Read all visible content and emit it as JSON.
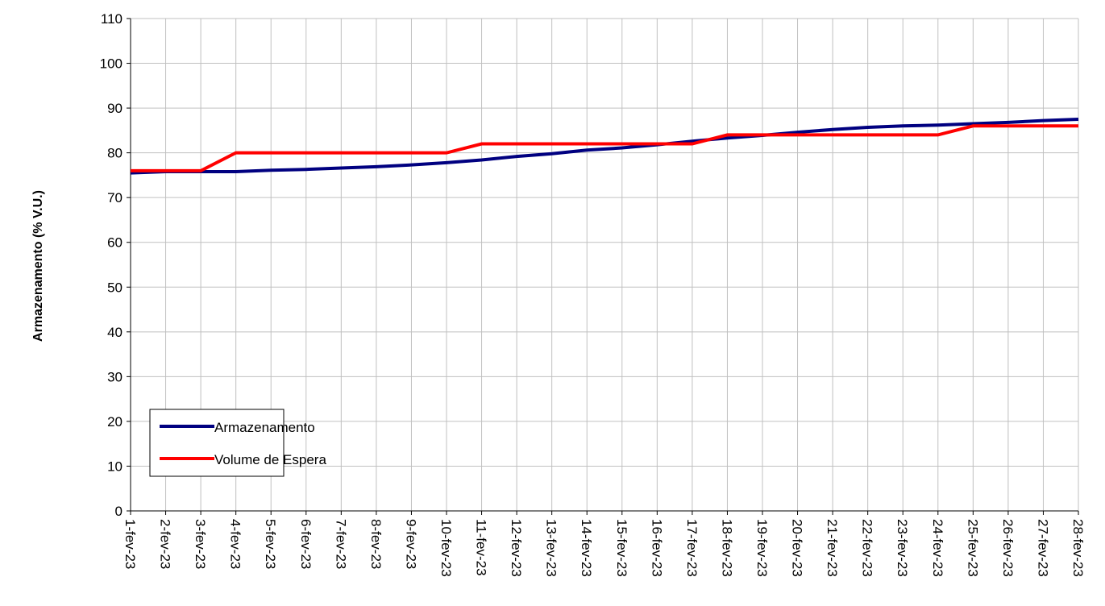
{
  "chart_data": {
    "type": "line",
    "y_label": "Armazenamento (% V.U.)",
    "categories": [
      "1-fev-23",
      "2-fev-23",
      "3-fev-23",
      "4-fev-23",
      "5-fev-23",
      "6-fev-23",
      "7-fev-23",
      "8-fev-23",
      "9-fev-23",
      "10-fev-23",
      "11-fev-23",
      "12-fev-23",
      "13-fev-23",
      "14-fev-23",
      "15-fev-23",
      "16-fev-23",
      "17-fev-23",
      "18-fev-23",
      "19-fev-23",
      "20-fev-23",
      "21-fev-23",
      "22-fev-23",
      "23-fev-23",
      "24-fev-23",
      "25-fev-23",
      "26-fev-23",
      "27-fev-23",
      "28-fev-23"
    ],
    "series": [
      {
        "name": "Armazenamento",
        "color": "#000080",
        "values": [
          75.5,
          75.8,
          75.8,
          75.8,
          76.1,
          76.3,
          76.6,
          76.9,
          77.3,
          77.8,
          78.4,
          79.2,
          79.8,
          80.6,
          81.1,
          81.8,
          82.6,
          83.3,
          83.9,
          84.6,
          85.2,
          85.7,
          86.0,
          86.2,
          86.5,
          86.8,
          87.2,
          87.5
        ]
      },
      {
        "name": "Volume de Espera",
        "color": "#ff0000",
        "values": [
          76,
          76,
          76,
          80,
          80,
          80,
          80,
          80,
          80,
          80,
          82,
          82,
          82,
          82,
          82,
          82,
          82,
          84,
          84,
          84,
          84,
          84,
          84,
          84,
          86,
          86,
          86,
          86
        ]
      }
    ],
    "ylim": [
      0,
      110
    ],
    "yticks": [
      0,
      10,
      20,
      30,
      40,
      50,
      60,
      70,
      80,
      90,
      100,
      110
    ],
    "grid": true,
    "legend": "lower-left"
  }
}
